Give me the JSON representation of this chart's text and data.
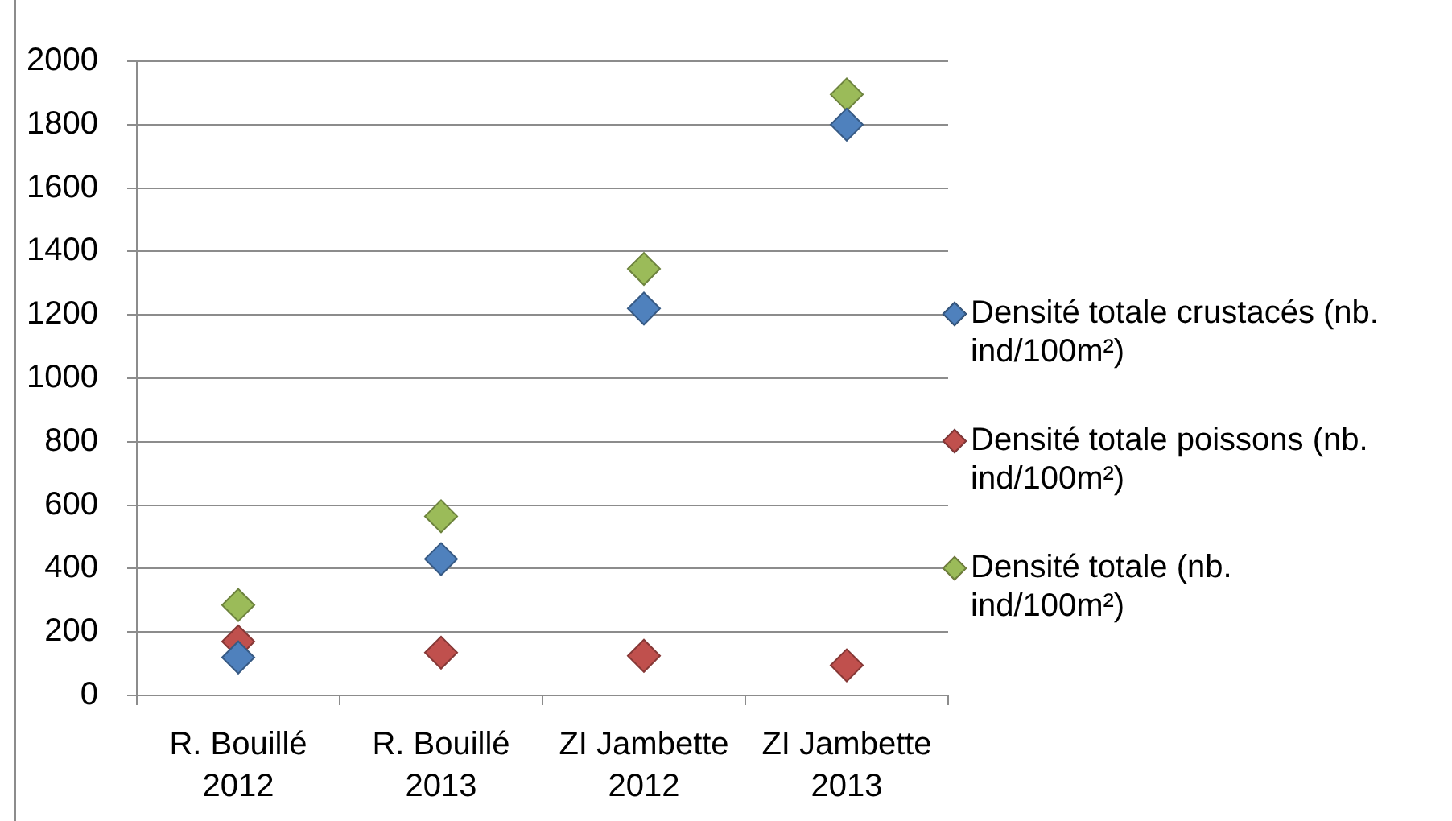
{
  "chart_data": {
    "type": "scatter",
    "categories": [
      "R. Bouillé 2012",
      "R. Bouillé 2013",
      "ZI Jambette 2012",
      "ZI Jambette 2013"
    ],
    "series": [
      {
        "name": "Densité totale crustacés (nb. ind/100m²)",
        "color": "#4f81bd",
        "values": [
          120,
          430,
          1220,
          1800
        ]
      },
      {
        "name": "Densité totale poissons (nb. ind/100m²)",
        "color": "#c0504d",
        "values": [
          170,
          135,
          125,
          95
        ]
      },
      {
        "name": "Densité totale (nb. ind/100m²)",
        "color": "#9bbb59",
        "values": [
          285,
          565,
          1345,
          1895
        ]
      }
    ],
    "ylim": [
      0,
      2000
    ],
    "yticks": [
      0,
      200,
      400,
      600,
      800,
      1000,
      1200,
      1400,
      1600,
      1800,
      2000
    ],
    "grid": "y",
    "legend": "right",
    "marker": "diamond"
  }
}
